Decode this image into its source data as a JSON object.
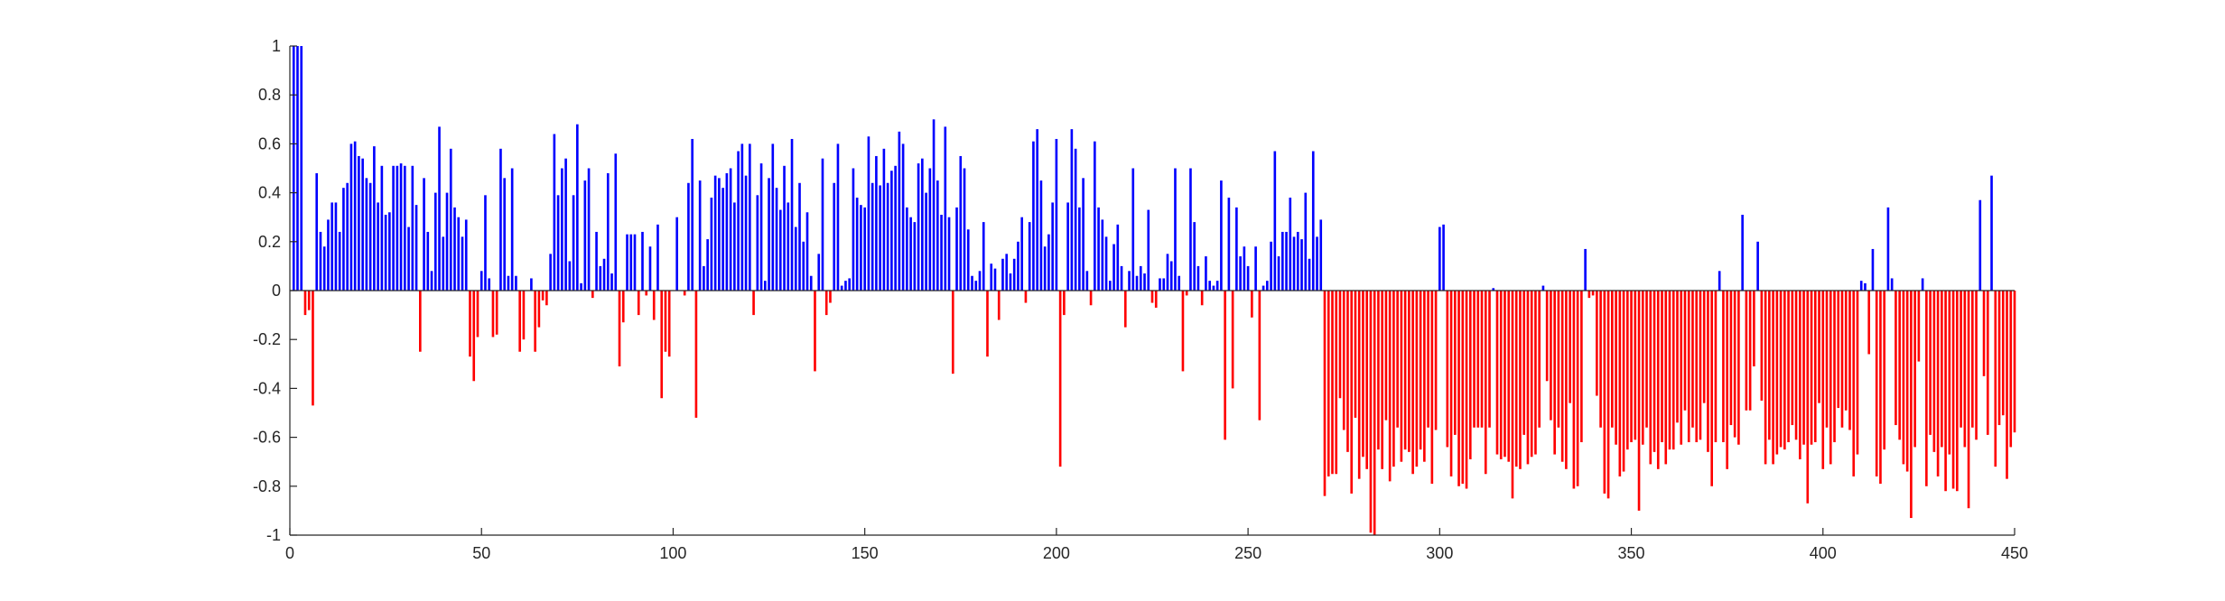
{
  "chart_data": {
    "type": "bar",
    "title": "",
    "xlabel": "",
    "ylabel": "",
    "xlim": [
      0,
      450
    ],
    "ylim": [
      -1,
      1
    ],
    "x_ticks": [
      0,
      50,
      100,
      150,
      200,
      250,
      300,
      350,
      400,
      450
    ],
    "y_ticks": [
      1,
      0.8,
      0.6,
      0.4,
      0.2,
      0,
      -0.2,
      -0.4,
      -0.6,
      -0.8,
      -1
    ],
    "x_tick_labels": [
      "0",
      "50",
      "100",
      "150",
      "200",
      "250",
      "300",
      "350",
      "400",
      "450"
    ],
    "y_tick_labels": [
      "1",
      "0.8",
      "0.6",
      "0.4",
      "0.2",
      "0",
      "-0.2",
      "-0.4",
      "-0.6",
      "-0.8",
      "-1"
    ],
    "grid": false,
    "legend": "none",
    "positive_color": "#0000ff",
    "negative_color": "#ff0000",
    "x_start": 1,
    "values": [
      1.0,
      1.0,
      1.0,
      -0.1,
      -0.08,
      -0.47,
      0.48,
      0.24,
      0.18,
      0.29,
      0.36,
      0.36,
      0.24,
      0.42,
      0.44,
      0.6,
      0.61,
      0.55,
      0.54,
      0.46,
      0.44,
      0.59,
      0.36,
      0.51,
      0.31,
      0.32,
      0.51,
      0.51,
      0.52,
      0.51,
      0.26,
      0.51,
      0.35,
      -0.25,
      0.46,
      0.24,
      0.08,
      0.4,
      0.67,
      0.22,
      0.4,
      0.58,
      0.34,
      0.3,
      0.22,
      0.29,
      -0.27,
      -0.37,
      -0.19,
      0.08,
      0.39,
      0.05,
      -0.19,
      -0.18,
      0.58,
      0.46,
      0.06,
      0.5,
      0.06,
      -0.25,
      -0.2,
      0.0,
      0.05,
      -0.25,
      -0.15,
      -0.04,
      -0.06,
      0.15,
      0.64,
      0.39,
      0.5,
      0.54,
      0.12,
      0.39,
      0.68,
      0.03,
      0.45,
      0.5,
      -0.03,
      0.24,
      0.1,
      0.13,
      0.48,
      0.07,
      0.56,
      -0.31,
      -0.13,
      0.23,
      0.23,
      0.23,
      -0.1,
      0.24,
      -0.02,
      0.18,
      -0.12,
      0.27,
      -0.44,
      -0.25,
      -0.27,
      0.0,
      0.3,
      0.0,
      -0.02,
      0.44,
      0.62,
      -0.52,
      0.45,
      0.1,
      0.21,
      0.38,
      0.47,
      0.46,
      0.42,
      0.48,
      0.5,
      0.36,
      0.57,
      0.6,
      0.47,
      0.6,
      -0.1,
      0.39,
      0.52,
      0.04,
      0.46,
      0.6,
      0.42,
      0.33,
      0.51,
      0.36,
      0.62,
      0.26,
      0.44,
      0.2,
      0.32,
      0.06,
      -0.33,
      0.15,
      0.54,
      -0.1,
      -0.05,
      0.44,
      0.6,
      0.02,
      0.04,
      0.05,
      0.5,
      0.38,
      0.35,
      0.34,
      0.63,
      0.44,
      0.55,
      0.43,
      0.58,
      0.44,
      0.49,
      0.51,
      0.65,
      0.6,
      0.34,
      0.3,
      0.28,
      0.52,
      0.54,
      0.4,
      0.5,
      0.7,
      0.45,
      0.31,
      0.67,
      0.3,
      -0.34,
      0.34,
      0.55,
      0.5,
      0.25,
      0.06,
      0.04,
      0.08,
      0.28,
      -0.27,
      0.11,
      0.09,
      -0.12,
      0.13,
      0.15,
      0.07,
      0.13,
      0.2,
      0.3,
      -0.05,
      0.28,
      0.61,
      0.66,
      0.45,
      0.18,
      0.23,
      0.36,
      0.62,
      -0.72,
      -0.1,
      0.36,
      0.66,
      0.58,
      0.34,
      0.46,
      0.08,
      -0.06,
      0.61,
      0.34,
      0.29,
      0.22,
      0.04,
      0.19,
      0.27,
      0.1,
      -0.15,
      0.08,
      0.5,
      0.06,
      0.1,
      0.07,
      0.33,
      -0.05,
      -0.07,
      0.05,
      0.05,
      0.15,
      0.12,
      0.5,
      0.06,
      -0.33,
      -0.02,
      0.5,
      0.28,
      0.1,
      -0.06,
      0.14,
      0.04,
      0.02,
      0.04,
      0.45,
      -0.61,
      0.38,
      -0.4,
      0.34,
      0.14,
      0.18,
      0.1,
      -0.11,
      0.18,
      -0.53,
      0.02,
      0.04,
      0.2,
      0.57,
      0.14,
      0.24,
      0.24,
      0.38,
      0.22,
      0.24,
      0.21,
      0.4,
      0.13,
      0.57,
      0.22,
      0.29,
      -0.84,
      -0.76,
      -0.75,
      -0.75,
      -0.44,
      -0.57,
      -0.66,
      -0.83,
      -0.52,
      -0.77,
      -0.68,
      -0.73,
      -0.99,
      -1.0,
      -0.65,
      -0.73,
      -0.53,
      -0.78,
      -0.72,
      -0.56,
      -0.7,
      -0.65,
      -0.66,
      -0.75,
      -0.72,
      -0.65,
      -0.7,
      -0.56,
      -0.79,
      -0.57,
      0.26,
      0.27,
      -0.64,
      -0.76,
      -0.59,
      -0.8,
      -0.79,
      -0.81,
      -0.69,
      -0.56,
      -0.56,
      -0.56,
      -0.75,
      -0.56,
      0.01,
      -0.67,
      -0.69,
      -0.68,
      -0.7,
      -0.85,
      -0.72,
      -0.73,
      -0.59,
      -0.71,
      -0.68,
      -0.67,
      -0.56,
      0.02,
      -0.37,
      -0.53,
      -0.67,
      -0.56,
      -0.7,
      -0.73,
      -0.46,
      -0.81,
      -0.8,
      -0.62,
      0.17,
      -0.03,
      -0.02,
      -0.43,
      -0.56,
      -0.83,
      -0.85,
      -0.56,
      -0.63,
      -0.76,
      -0.74,
      -0.65,
      -0.62,
      -0.61,
      -0.9,
      -0.63,
      -0.56,
      -0.71,
      -0.66,
      -0.73,
      -0.62,
      -0.71,
      -0.65,
      -0.65,
      -0.54,
      -0.63,
      -0.49,
      -0.62,
      -0.56,
      -0.62,
      -0.61,
      -0.46,
      -0.66,
      -0.8,
      -0.62,
      0.08,
      -0.62,
      -0.73,
      -0.55,
      -0.6,
      -0.63,
      0.31,
      -0.49,
      -0.49,
      -0.31,
      0.2,
      -0.45,
      -0.71,
      -0.61,
      -0.71,
      -0.67,
      -0.64,
      -0.65,
      -0.62,
      -0.55,
      -0.61,
      -0.69,
      -0.63,
      -0.87,
      -0.63,
      -0.62,
      -0.46,
      -0.73,
      -0.56,
      -0.71,
      -0.62,
      -0.48,
      -0.56,
      -0.49,
      -0.57,
      -0.76,
      -0.67,
      0.04,
      0.03,
      -0.26,
      0.17,
      -0.76,
      -0.79,
      -0.65,
      0.34,
      0.05,
      -0.55,
      -0.61,
      -0.71,
      -0.74,
      -0.93,
      -0.64,
      -0.29,
      0.05,
      -0.8,
      -0.59,
      -0.66,
      -0.76,
      -0.64,
      -0.82,
      -0.67,
      -0.81,
      -0.82,
      -0.56,
      -0.64,
      -0.89,
      -0.56,
      -0.61,
      0.37,
      -0.35,
      -0.59,
      0.47,
      -0.72,
      -0.55,
      -0.51,
      -0.77,
      -0.64,
      -0.58
    ]
  }
}
